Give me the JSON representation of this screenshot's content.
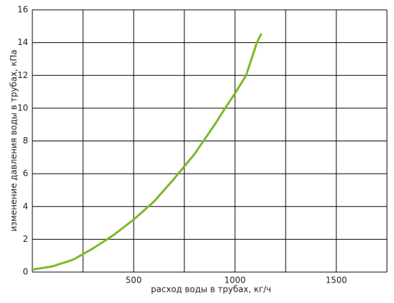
{
  "chart_data": {
    "type": "line",
    "x_label": "расход воды в трубах, кг/ч",
    "y_label": "изменение давления воды в трубах, кПа",
    "series": [
      {
        "color": "#7ab829",
        "x": [
          0,
          100,
          200,
          250,
          300,
          400,
          500,
          600,
          700,
          800,
          900,
          951,
          1000,
          1055,
          1108,
          1128
        ],
        "values": [
          0.15,
          0.35,
          0.75,
          1.1,
          1.45,
          2.25,
          3.2,
          4.3,
          5.7,
          7.2,
          9.0,
          10,
          10.9,
          12,
          14,
          14.5
        ]
      }
    ],
    "xlim": [
      0,
      1750
    ],
    "xticks": [
      500,
      1000,
      1500
    ],
    "xgrid": [
      0,
      250,
      500,
      750,
      1000,
      1250,
      1500,
      1750
    ],
    "ylim": [
      0,
      16
    ],
    "yticks": [
      0,
      2,
      4,
      6,
      8,
      10,
      12,
      14,
      16
    ],
    "grid": true
  }
}
